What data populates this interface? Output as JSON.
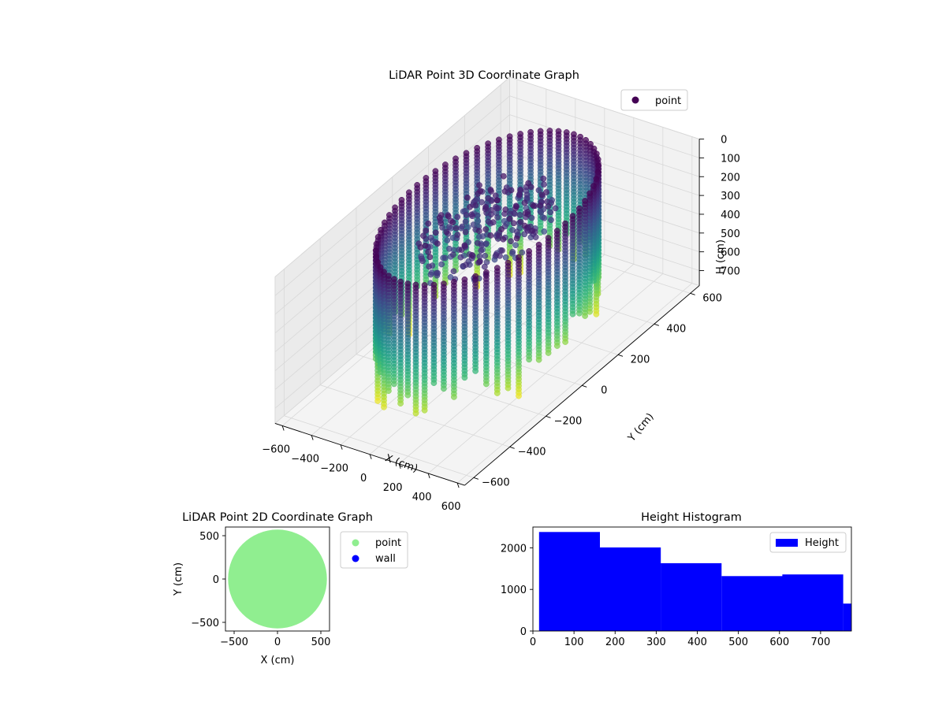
{
  "chart_data": [
    {
      "type": "scatter",
      "projection": "3d",
      "title": "LiDAR Point 3D Coordinate Graph",
      "xlabel": "X (cm)",
      "ylabel": "Y (cm)",
      "zlabel": "H (cm)",
      "xlim": [
        -650,
        650
      ],
      "ylim": [
        -650,
        650
      ],
      "zlim": [
        0,
        780
      ],
      "z_inverted": true,
      "xticks": [
        "−600",
        "−400",
        "−200",
        "0",
        "200",
        "400",
        "600"
      ],
      "yticks": [
        "−600",
        "−400",
        "−200",
        "0",
        "200",
        "400",
        "600"
      ],
      "zticks": [
        "0",
        "100",
        "200",
        "300",
        "400",
        "500",
        "600",
        "700"
      ],
      "colormap": "viridis",
      "grid": true,
      "legend": {
        "position": "top-right",
        "entries": [
          {
            "label": "point",
            "color": "#440154"
          }
        ]
      },
      "series": [
        {
          "name": "point",
          "shape": "cylindrical wall of vertical point columns plus inner ceiling cluster",
          "wall_radius": 480,
          "wall_columns": 64,
          "height_range": [
            0,
            760
          ],
          "center_cluster_radius": 300
        }
      ]
    },
    {
      "type": "scatter",
      "title": "LiDAR Point 2D Coordinate Graph",
      "xlabel": "X (cm)",
      "ylabel": "Y (cm)",
      "xlim": [
        -600,
        600
      ],
      "ylim": [
        -600,
        600
      ],
      "xticks": [
        "−500",
        "0",
        "500"
      ],
      "yticks": [
        "−500",
        "0",
        "500"
      ],
      "legend": {
        "position": "outside-right",
        "entries": [
          {
            "label": "point",
            "color": "#90ee90"
          },
          {
            "label": "wall",
            "color": "#0000ff"
          }
        ]
      },
      "series": [
        {
          "name": "point",
          "color": "#90ee90",
          "shape": "filled disc",
          "center": [
            0,
            0
          ],
          "radius": 570
        },
        {
          "name": "wall",
          "color": "#0000ff",
          "values": []
        }
      ]
    },
    {
      "type": "bar",
      "subtype": "histogram",
      "title": "Height Histogram",
      "xlabel": "",
      "ylabel": "",
      "xlim": [
        0,
        775
      ],
      "ylim": [
        0,
        2500
      ],
      "xticks": [
        "0",
        "100",
        "200",
        "300",
        "400",
        "500",
        "600",
        "700"
      ],
      "yticks": [
        "0",
        "1000",
        "2000"
      ],
      "color": "#0000ff",
      "legend": {
        "position": "top-right",
        "entries": [
          {
            "label": "Height",
            "color": "#0000ff"
          }
        ]
      },
      "bins": [
        {
          "x0": 15,
          "x1": 163,
          "value": 2380
        },
        {
          "x0": 163,
          "x1": 311,
          "value": 2010
        },
        {
          "x0": 311,
          "x1": 459,
          "value": 1630
        },
        {
          "x0": 459,
          "x1": 607,
          "value": 1320
        },
        {
          "x0": 607,
          "x1": 755,
          "value": 1360
        },
        {
          "x0": 755,
          "x1": 903,
          "value": 660
        }
      ]
    }
  ]
}
